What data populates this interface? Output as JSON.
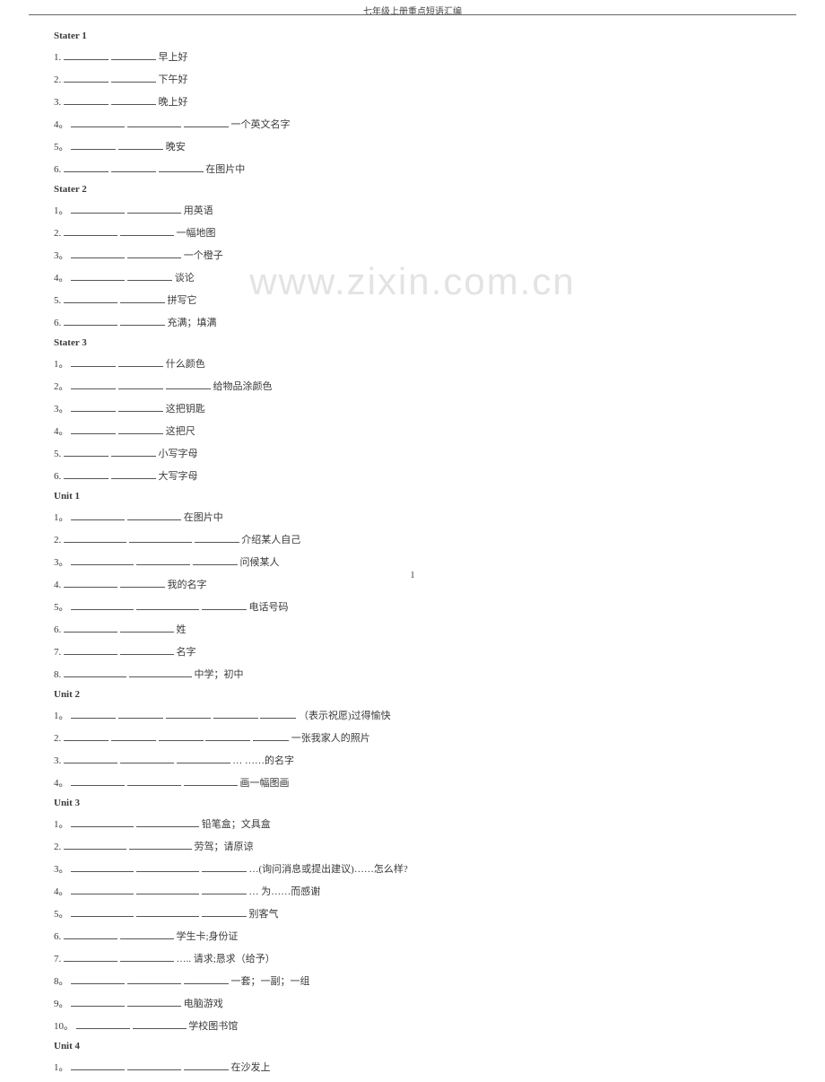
{
  "header": "七年级上册重点短语汇编",
  "watermark": "www.zixin.com.cn",
  "page": "1",
  "groups": [
    {
      "title": "Stater 1",
      "items": [
        {
          "n": "1.",
          "b": [
            50,
            50
          ],
          "t": "早上好"
        },
        {
          "n": "2.",
          "b": [
            50,
            50
          ],
          "t": "下午好"
        },
        {
          "n": "3.",
          "b": [
            50,
            50
          ],
          "t": "晚上好"
        },
        {
          "n": "4。",
          "b": [
            60,
            60,
            50
          ],
          "t": "一个英文名字"
        },
        {
          "n": "5。",
          "b": [
            50,
            50
          ],
          "t": "晚安"
        },
        {
          "n": "6.",
          "b": [
            50,
            50,
            50
          ],
          "t": "在图片中"
        }
      ]
    },
    {
      "title": "Stater 2",
      "items": [
        {
          "n": "1。",
          "b": [
            60,
            60
          ],
          "t": "用英语"
        },
        {
          "n": "2.",
          "b": [
            60,
            60
          ],
          "t": "一幅地图"
        },
        {
          "n": "3。",
          "b": [
            60,
            60
          ],
          "t": "一个橙子"
        },
        {
          "n": "4。",
          "b": [
            60,
            50
          ],
          "t": "谈论"
        },
        {
          "n": "5.",
          "b": [
            60,
            50
          ],
          "t": "拼写它"
        },
        {
          "n": "6.",
          "b": [
            60,
            50
          ],
          "t": "充满；填满"
        }
      ]
    },
    {
      "title": "Stater 3",
      "items": [
        {
          "n": "1。",
          "b": [
            50,
            50
          ],
          "t": "什么颜色"
        },
        {
          "n": "2。",
          "b": [
            50,
            50,
            50
          ],
          "t": "给物品涂颜色"
        },
        {
          "n": "3。",
          "b": [
            50,
            50
          ],
          "t": "这把钥匙"
        },
        {
          "n": "4。",
          "b": [
            50,
            50
          ],
          "t": "这把尺"
        },
        {
          "n": "5.",
          "b": [
            50,
            50
          ],
          "t": "小写字母"
        },
        {
          "n": "6.",
          "b": [
            50,
            50
          ],
          "t": "大写字母"
        }
      ]
    },
    {
      "title": "Unit 1",
      "items": [
        {
          "n": "1。",
          "b": [
            60,
            60
          ],
          "t": "在图片中"
        },
        {
          "n": "2.",
          "b": [
            70,
            70,
            50
          ],
          "t": "介绍某人自己"
        },
        {
          "n": "3。",
          "b": [
            70,
            60,
            50
          ],
          "t": "问候某人"
        },
        {
          "n": "4.",
          "b": [
            60,
            50
          ],
          "t": "我的名字"
        },
        {
          "n": "5。",
          "b": [
            70,
            70,
            50
          ],
          "t": "电话号码"
        },
        {
          "n": "6.",
          "b": [
            60,
            60
          ],
          "t": "姓"
        },
        {
          "n": "7.",
          "b": [
            60,
            60
          ],
          "t": "名字"
        },
        {
          "n": "8.",
          "b": [
            70,
            70
          ],
          "t": "中学；初中"
        }
      ]
    },
    {
      "title": "Unit 2",
      "items": [
        {
          "n": "1。",
          "b": [
            50,
            50,
            50,
            50,
            40
          ],
          "t": "（表示祝愿)过得愉快"
        },
        {
          "n": "2.",
          "b": [
            50,
            50,
            50,
            50,
            40
          ],
          "t": "一张我家人的照片"
        },
        {
          "n": "3.",
          "b": [
            60,
            60,
            60
          ],
          "t": "… ……的名字"
        },
        {
          "n": "4。",
          "b": [
            60,
            60,
            60
          ],
          "t": "画一幅图画"
        }
      ]
    },
    {
      "title": "Unit 3",
      "items": [
        {
          "n": "1。",
          "b": [
            70,
            70
          ],
          "t": "铅笔盒；文具盒"
        },
        {
          "n": "2.",
          "b": [
            70,
            70
          ],
          "t": "劳驾；请原谅"
        },
        {
          "n": "3。",
          "b": [
            70,
            70,
            50
          ],
          "t": "…(询问消息或提出建议)……怎么样?"
        },
        {
          "n": "4。",
          "b": [
            70,
            70,
            50
          ],
          "t": "… 为……而感谢"
        },
        {
          "n": "5。",
          "b": [
            70,
            70,
            50
          ],
          "t": "别客气"
        },
        {
          "n": "6.",
          "b": [
            60,
            60
          ],
          "t": "学生卡;身份证"
        },
        {
          "n": "7.",
          "b": [
            60,
            60
          ],
          "t": "….. 请求;恳求（给予）"
        },
        {
          "n": "8。",
          "b": [
            60,
            60,
            50
          ],
          "t": "一套；一副；一组"
        },
        {
          "n": "9。",
          "b": [
            60,
            60
          ],
          "t": " 电脑游戏"
        },
        {
          "n": "10。",
          "b": [
            60,
            60
          ],
          "t": " 学校图书馆"
        }
      ]
    },
    {
      "title": "Unit 4",
      "items": [
        {
          "n": "1。",
          "b": [
            60,
            60,
            50
          ],
          "t": " 在沙发上"
        }
      ]
    }
  ]
}
